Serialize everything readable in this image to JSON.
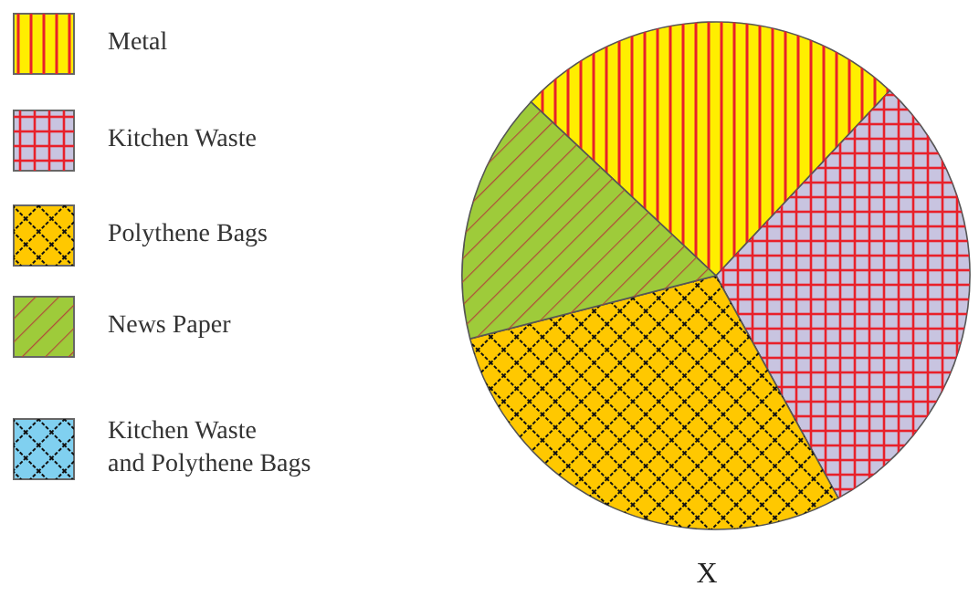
{
  "chart_data": {
    "type": "pie",
    "categories": [
      "Metal",
      "Kitchen Waste",
      "Polythene Bags",
      "News Paper",
      "Kitchen Waste\nand Polythene Bags"
    ],
    "values": [
      25,
      30,
      29,
      16,
      0
    ],
    "colors": [
      "#ffee00",
      "#c8c4e0",
      "#ffc800",
      "#9ecb3a",
      "#80d0f0"
    ],
    "legend": "left",
    "annotations": [
      "X"
    ]
  }
}
